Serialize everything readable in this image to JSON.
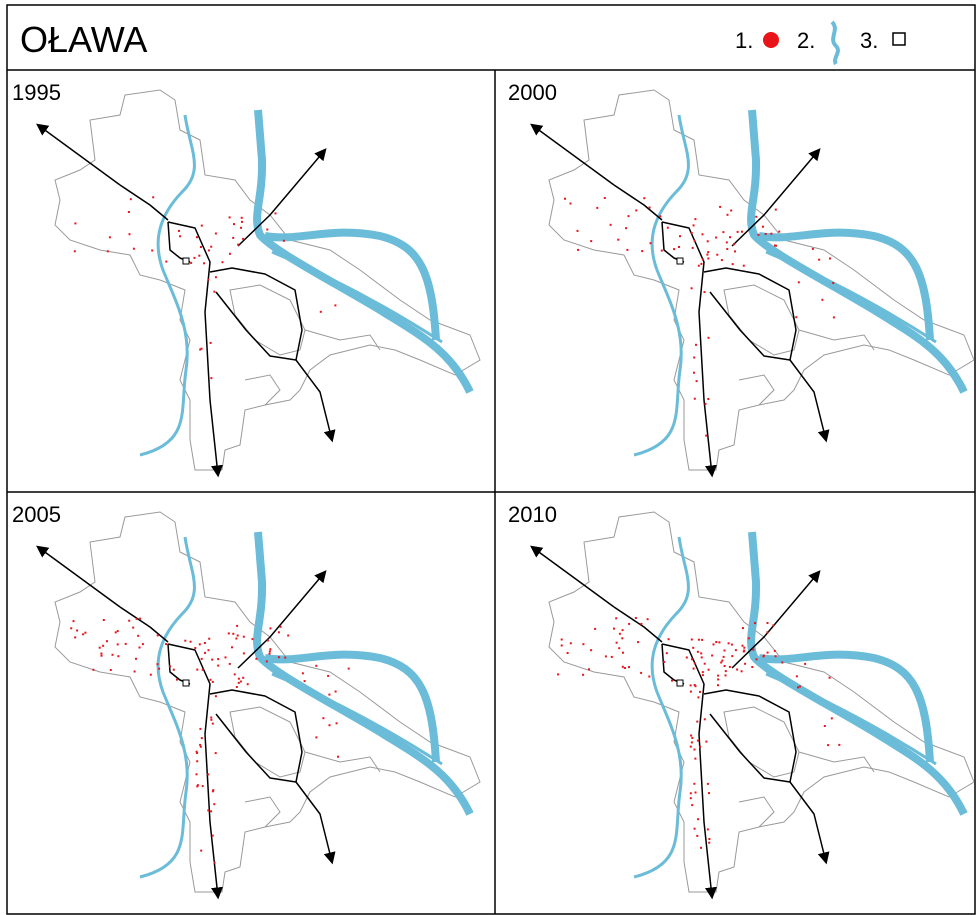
{
  "header": {
    "title": "OŁAWA"
  },
  "legend": {
    "items": [
      {
        "label": "1."
      },
      {
        "label": "2."
      },
      {
        "label": "3."
      }
    ]
  },
  "panels": [
    {
      "year": "1995"
    },
    {
      "year": "2000"
    },
    {
      "year": "2005"
    },
    {
      "year": "2010"
    }
  ]
}
